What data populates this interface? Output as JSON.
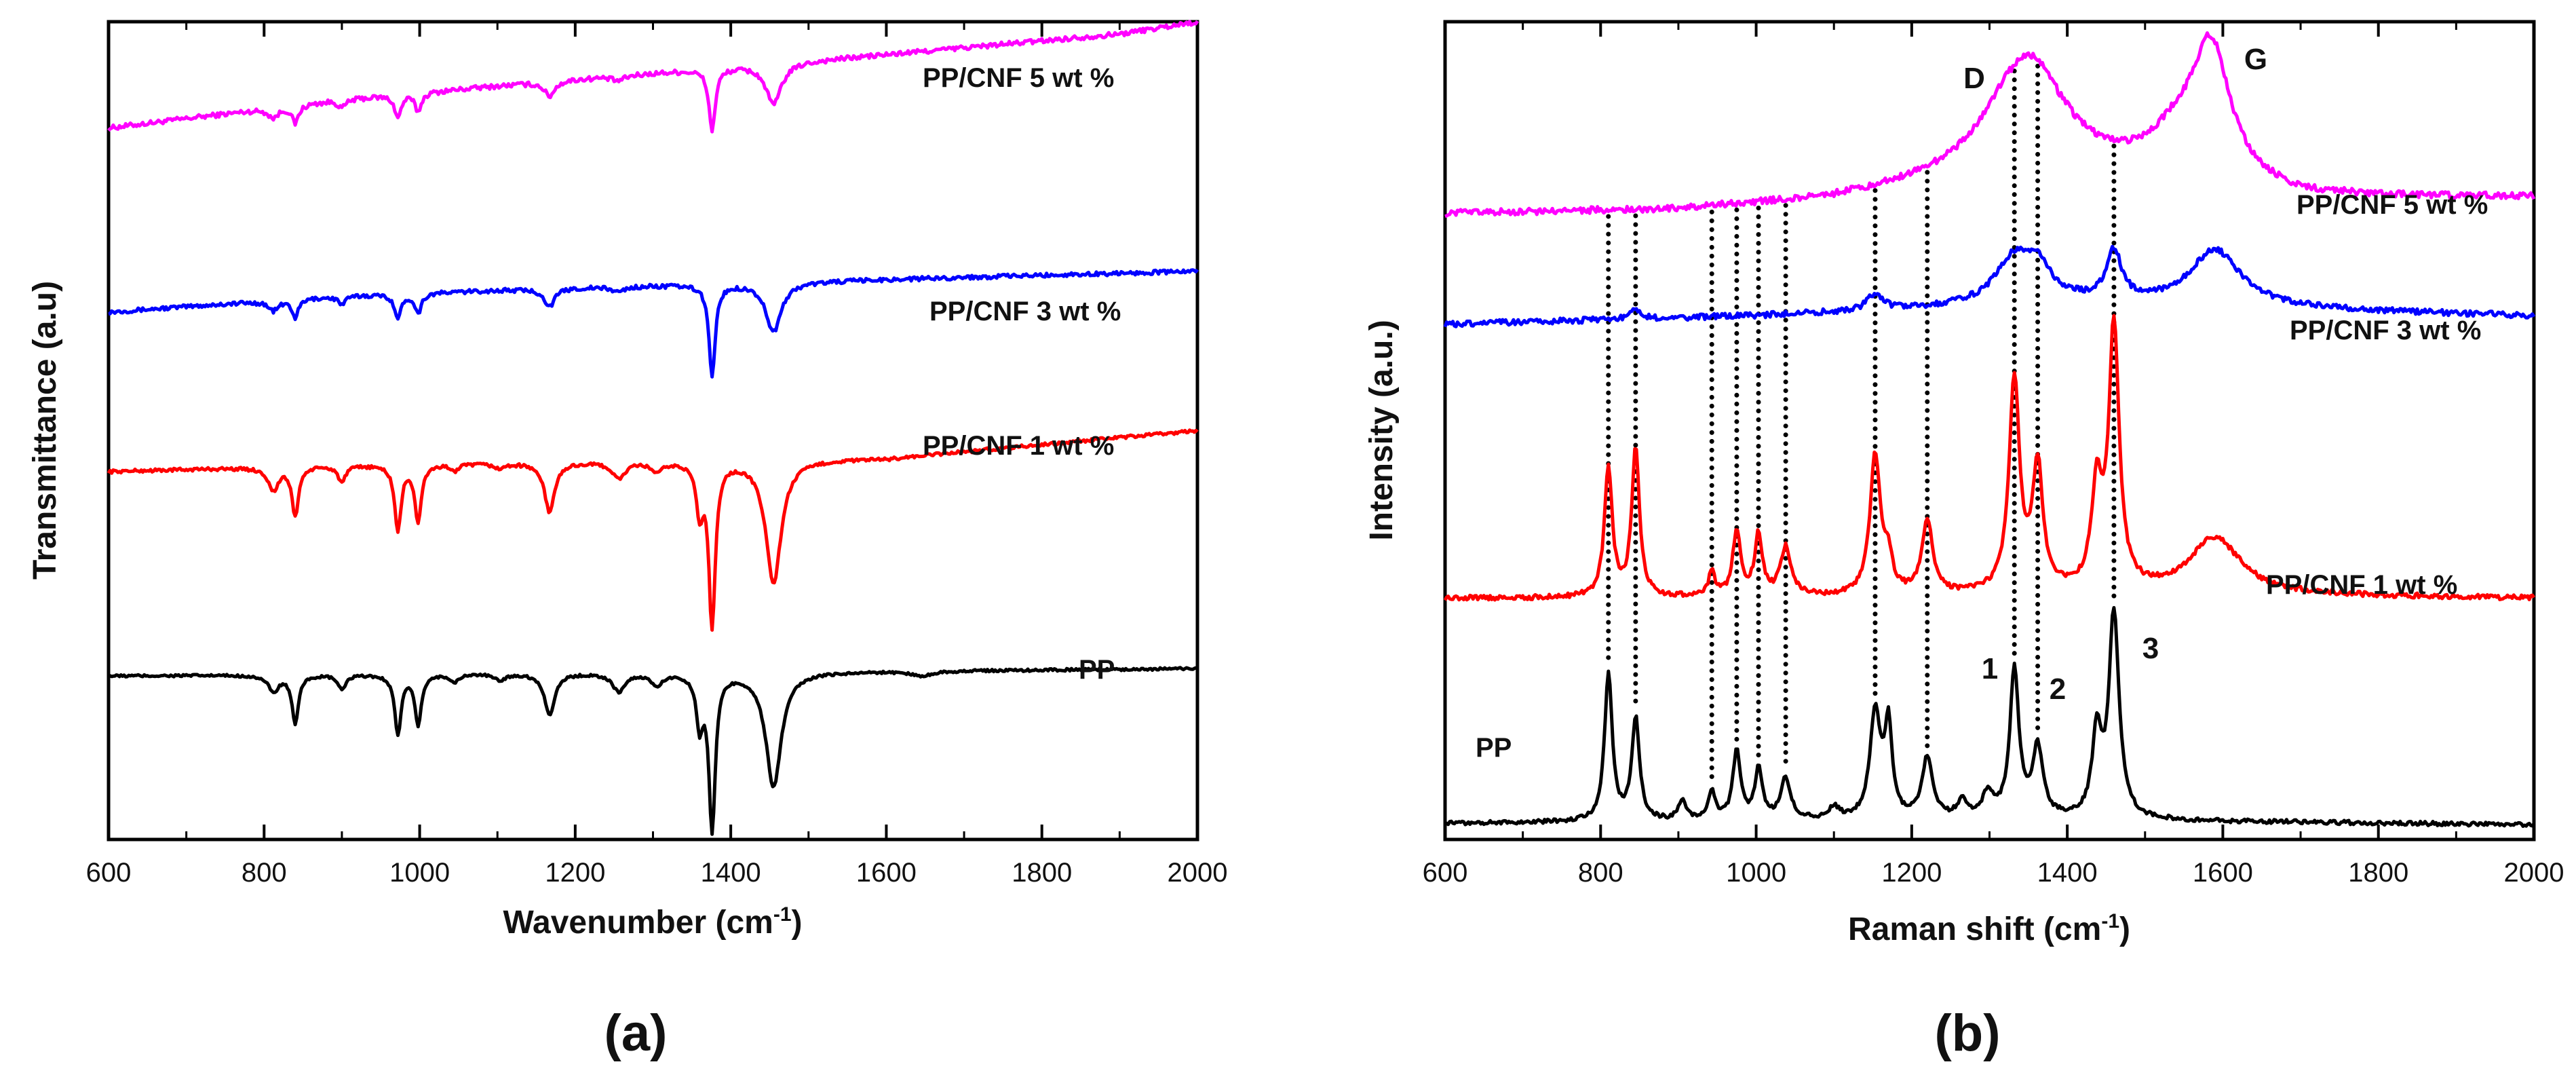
{
  "chart_data": [
    {
      "panel": "(a)",
      "type": "line",
      "xlabel": "Wavenumber (cm",
      "xlabel_sup": "-1",
      "xlabel_close": ")",
      "ylabel": "Transmittance (a.u)",
      "xlim": [
        600,
        2000
      ],
      "ylim": [
        0,
        1
      ],
      "xticks": [
        "600",
        "800",
        "1000",
        "1200",
        "1400",
        "1600",
        "1800",
        "2000"
      ],
      "xtick_values": [
        600,
        800,
        1000,
        1200,
        1400,
        1600,
        1800,
        2000
      ],
      "y_ticks_shown": false,
      "series": [
        {
          "name": "PP/CNF 5 wt %",
          "color": "#ff00ff",
          "baseline": 0.87,
          "drift_points": [
            [
              600,
              0.0
            ],
            [
              900,
              0.035
            ],
            [
              1200,
              0.06
            ],
            [
              1600,
              0.09
            ],
            [
              1900,
              0.115
            ],
            [
              2000,
              0.13
            ]
          ],
          "bands": [
            [
              812,
              0.012,
              8
            ],
            [
              840,
              0.022,
              5
            ],
            [
              900,
              0.01,
              6
            ],
            [
              972,
              0.028,
              5
            ],
            [
              998,
              0.022,
              5
            ],
            [
              1167,
              0.018,
              8
            ],
            [
              1255,
              0.006,
              10
            ],
            [
              1376,
              0.075,
              5
            ],
            [
              1455,
              0.05,
              12
            ]
          ],
          "noise": 0.003
        },
        {
          "name": "PP/CNF 3 wt %",
          "color": "#0000ff",
          "baseline": 0.645,
          "drift_points": [
            [
              600,
              0.0
            ],
            [
              900,
              0.02
            ],
            [
              1200,
              0.03
            ],
            [
              1600,
              0.04
            ],
            [
              2000,
              0.05
            ]
          ],
          "bands": [
            [
              812,
              0.012,
              8
            ],
            [
              840,
              0.022,
              5
            ],
            [
              900,
              0.01,
              6
            ],
            [
              972,
              0.03,
              5
            ],
            [
              998,
              0.024,
              5
            ],
            [
              1167,
              0.022,
              8
            ],
            [
              1255,
              0.006,
              10
            ],
            [
              1376,
              0.11,
              5
            ],
            [
              1455,
              0.06,
              12
            ]
          ],
          "noise": 0.0025
        },
        {
          "name": "PP/CNF 1 wt %",
          "color": "#ff0000",
          "baseline": 0.45,
          "drift_points": [
            [
              600,
              0.0
            ],
            [
              900,
              0.008
            ],
            [
              1200,
              0.012
            ],
            [
              1600,
              0.016
            ],
            [
              2000,
              0.05
            ]
          ],
          "bands": [
            [
              812,
              0.028,
              8
            ],
            [
              840,
              0.06,
              5
            ],
            [
              900,
              0.02,
              6
            ],
            [
              972,
              0.08,
              5
            ],
            [
              998,
              0.07,
              5
            ],
            [
              1045,
              0.008,
              6
            ],
            [
              1103,
              0.006,
              8
            ],
            [
              1167,
              0.06,
              8
            ],
            [
              1256,
              0.02,
              10
            ],
            [
              1305,
              0.012,
              8
            ],
            [
              1360,
              0.06,
              5
            ],
            [
              1376,
              0.2,
              5
            ],
            [
              1455,
              0.15,
              12
            ]
          ],
          "noise": 0.002
        },
        {
          "name": "PP",
          "color": "#000000",
          "baseline": 0.2,
          "drift_points": [
            [
              600,
              0.0
            ],
            [
              900,
              0.002
            ],
            [
              1200,
              0.004
            ],
            [
              1600,
              0.006
            ],
            [
              2000,
              0.009
            ]
          ],
          "bands": [
            [
              812,
              0.02,
              8
            ],
            [
              840,
              0.06,
              5
            ],
            [
              900,
              0.018,
              6
            ],
            [
              972,
              0.072,
              5
            ],
            [
              998,
              0.062,
              5
            ],
            [
              1045,
              0.01,
              6
            ],
            [
              1103,
              0.008,
              8
            ],
            [
              1167,
              0.05,
              8
            ],
            [
              1256,
              0.022,
              10
            ],
            [
              1305,
              0.015,
              8
            ],
            [
              1360,
              0.06,
              5
            ],
            [
              1376,
              0.19,
              5
            ],
            [
              1455,
              0.14,
              12
            ],
            [
              1645,
              0.006,
              15
            ]
          ],
          "noise": 0.0015
        }
      ]
    },
    {
      "panel": "(b)",
      "type": "line",
      "xlabel": "Raman shift (cm",
      "xlabel_sup": "-1",
      "xlabel_close": ")",
      "ylabel": "Intensity (a.u.)",
      "xlim": [
        600,
        2000
      ],
      "ylim": [
        0,
        1
      ],
      "xticks": [
        "600",
        "800",
        "1000",
        "1200",
        "1400",
        "1600",
        "1800",
        "2000"
      ],
      "xtick_values": [
        600,
        800,
        1000,
        1200,
        1400,
        1600,
        1800,
        2000
      ],
      "y_ticks_shown": false,
      "dotted_lines_x": [
        810,
        845,
        943,
        975,
        1003,
        1038,
        1153,
        1220,
        1332,
        1362,
        1460
      ],
      "series": [
        {
          "name": "PP/CNF 5 wt %",
          "color": "#ff00ff",
          "baseline": 0.765,
          "drift_points": [
            [
              600,
              0.0
            ],
            [
              900,
              0.005
            ],
            [
              1100,
              0.018
            ],
            [
              1250,
              0.04
            ],
            [
              1400,
              0.06
            ],
            [
              1700,
              0.02
            ],
            [
              2000,
              0.02
            ]
          ],
          "bands": [
            [
              1332,
              0.09,
              55
            ],
            [
              1362,
              0.06,
              40
            ],
            [
              1585,
              0.16,
              30
            ],
            [
              1540,
              0.04,
              40
            ]
          ],
          "noise": 0.004
        },
        {
          "name": "PP/CNF 3 wt %",
          "color": "#0000ff",
          "baseline": 0.63,
          "drift_points": [
            [
              600,
              0.0
            ],
            [
              1000,
              0.01
            ],
            [
              1400,
              0.025
            ],
            [
              2000,
              0.01
            ]
          ],
          "bands": [
            [
              845,
              0.012,
              8
            ],
            [
              1153,
              0.02,
              12
            ],
            [
              1332,
              0.055,
              30
            ],
            [
              1362,
              0.035,
              20
            ],
            [
              1460,
              0.06,
              12
            ],
            [
              1590,
              0.07,
              40
            ]
          ],
          "noise": 0.0035
        },
        {
          "name": "PP/CNF 1 wt %",
          "color": "#ff0000",
          "baseline": 0.295,
          "drift_points": [
            [
              600,
              0.0
            ],
            [
              1000,
              0.0
            ],
            [
              1400,
              0.005
            ],
            [
              2000,
              0.0
            ]
          ],
          "bands": [
            [
              810,
              0.16,
              6
            ],
            [
              845,
              0.18,
              6
            ],
            [
              943,
              0.03,
              5
            ],
            [
              975,
              0.08,
              6
            ],
            [
              1003,
              0.075,
              6
            ],
            [
              1038,
              0.06,
              8
            ],
            [
              1153,
              0.17,
              8
            ],
            [
              1170,
              0.04,
              6
            ],
            [
              1220,
              0.09,
              8
            ],
            [
              1332,
              0.26,
              8
            ],
            [
              1362,
              0.15,
              8
            ],
            [
              1438,
              0.12,
              8
            ],
            [
              1460,
              0.32,
              8
            ],
            [
              1590,
              0.07,
              40
            ]
          ],
          "noise": 0.003
        },
        {
          "name": "PP",
          "color": "#000000",
          "baseline": 0.02,
          "drift_points": [
            [
              600,
              0.0
            ],
            [
              1000,
              0.002
            ],
            [
              1400,
              0.004
            ],
            [
              2000,
              -0.002
            ]
          ],
          "bands": [
            [
              810,
              0.18,
              6
            ],
            [
              845,
              0.125,
              6
            ],
            [
              905,
              0.025,
              6
            ],
            [
              943,
              0.035,
              5
            ],
            [
              975,
              0.085,
              6
            ],
            [
              1003,
              0.06,
              6
            ],
            [
              1038,
              0.05,
              8
            ],
            [
              1100,
              0.015,
              8
            ],
            [
              1153,
              0.13,
              8
            ],
            [
              1170,
              0.11,
              6
            ],
            [
              1220,
              0.075,
              8
            ],
            [
              1265,
              0.02,
              8
            ],
            [
              1298,
              0.03,
              8
            ],
            [
              1332,
              0.18,
              7
            ],
            [
              1362,
              0.085,
              8
            ],
            [
              1438,
              0.1,
              7
            ],
            [
              1460,
              0.25,
              8
            ]
          ],
          "noise": 0.0025
        }
      ]
    }
  ],
  "annotations_b": {
    "d_label": "D",
    "g_label": "G",
    "peak1": "1",
    "peak2": "2",
    "peak3": "3"
  }
}
